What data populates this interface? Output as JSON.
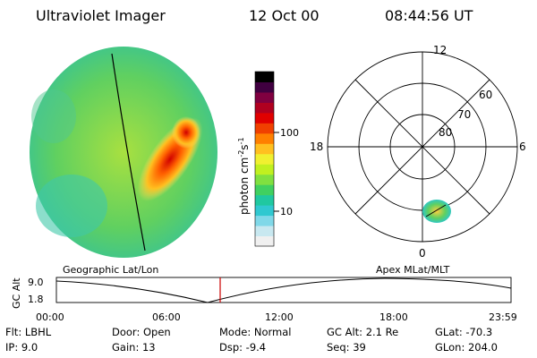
{
  "header": {
    "title": "Ultraviolet Imager",
    "date": "12 Oct 00",
    "time": "08:44:56 UT"
  },
  "colorbar": {
    "label": "photon cm⁻²s⁻¹",
    "label_main": "photon cm",
    "label_sup1": "-2",
    "label_mid": "s",
    "label_sup2": "-1",
    "ticks": [
      "100",
      "10"
    ],
    "colors": [
      "#f0f0f0",
      "#c8e8f0",
      "#80d8e8",
      "#30c8d0",
      "#20c8a0",
      "#40d060",
      "#80e040",
      "#c0f020",
      "#f0f030",
      "#ffc020",
      "#ff8000",
      "#f04000",
      "#e00000",
      "#b00020",
      "#800040",
      "#400040",
      "#000000"
    ]
  },
  "polar": {
    "mlt_labels": [
      "12",
      "18",
      "6",
      "0"
    ],
    "lat_labels": [
      "60",
      "70",
      "80"
    ]
  },
  "lower": {
    "left_caption": "Geographic Lat/Lon",
    "right_caption": "Apex MLat/MLT",
    "y_axis_label": "GC Alt",
    "y_ticks": [
      "9.0",
      "1.8"
    ],
    "x_ticks": [
      "00:00",
      "06:00",
      "12:00",
      "18:00",
      "23:59"
    ]
  },
  "info": {
    "flt": "Flt: LBHL",
    "ip": "IP:  9.0",
    "door": "Door: Open",
    "gain": "Gain: 13",
    "mode": "Mode: Normal",
    "dsp": "Dsp:   -9.4",
    "gcalt": "GC Alt: 2.1 Re",
    "seq": "Seq: 39",
    "glat": "GLat: -70.3",
    "glon": "GLon: 204.0"
  }
}
